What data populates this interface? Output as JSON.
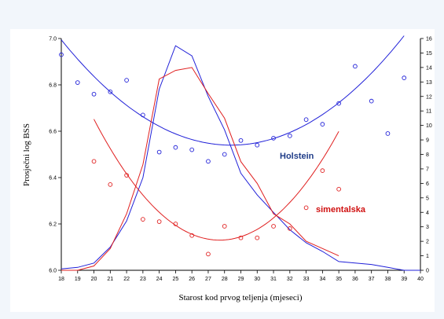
{
  "chart_data": {
    "type": "line",
    "xlabel": "Starost kod prvog teljenja (mjeseci)",
    "ylabel": "Prosječni log BSS",
    "x_ticks": [
      18,
      19,
      20,
      21,
      22,
      23,
      24,
      25,
      26,
      27,
      28,
      29,
      30,
      31,
      32,
      33,
      34,
      35,
      36,
      37,
      38,
      39,
      40
    ],
    "y_left_ticks": [
      "6.0",
      "6.2",
      "6.4",
      "6.6",
      "6.8",
      "7.0"
    ],
    "y_right_ticks": [
      0,
      1,
      2,
      3,
      4,
      5,
      6,
      7,
      8,
      9,
      10,
      11,
      12,
      13,
      14,
      15,
      16
    ],
    "xlim": [
      18,
      40
    ],
    "ylim_left": [
      6.0,
      7.0
    ],
    "ylim_right": [
      0,
      16
    ],
    "grid": false,
    "series": [
      {
        "name": "Holstein",
        "color": "#2020d8",
        "axis": "left",
        "points": [
          [
            18,
            6.93
          ],
          [
            19,
            6.81
          ],
          [
            20,
            6.76
          ],
          [
            21,
            6.77
          ],
          [
            22,
            6.82
          ],
          [
            23,
            6.67
          ],
          [
            24,
            6.51
          ],
          [
            25,
            6.53
          ],
          [
            26,
            6.52
          ],
          [
            27,
            6.47
          ],
          [
            28,
            6.5
          ],
          [
            29,
            6.56
          ],
          [
            30,
            6.54
          ],
          [
            31,
            6.57
          ],
          [
            32,
            6.58
          ],
          [
            33,
            6.65
          ],
          [
            34,
            6.63
          ],
          [
            35,
            6.72
          ],
          [
            36,
            6.88
          ],
          [
            37,
            6.73
          ],
          [
            38,
            6.59
          ],
          [
            39,
            6.83
          ]
        ],
        "trend_quadratic": {
          "x_vertex": 28.4,
          "y_vertex": 6.54,
          "a": 0.0042
        },
        "frequency_line": [
          [
            18,
            0.1
          ],
          [
            19,
            0.2
          ],
          [
            20,
            0.5
          ],
          [
            21,
            1.6
          ],
          [
            22,
            3.4
          ],
          [
            23,
            6.4
          ],
          [
            24,
            12.5
          ],
          [
            25,
            15.5
          ],
          [
            26,
            14.8
          ],
          [
            27,
            12.0
          ],
          [
            28,
            9.7
          ],
          [
            29,
            6.7
          ],
          [
            30,
            5.2
          ],
          [
            31,
            4.0
          ],
          [
            32,
            2.8
          ],
          [
            33,
            1.9
          ],
          [
            34,
            1.3
          ],
          [
            35,
            0.6
          ],
          [
            36,
            0.5
          ],
          [
            37,
            0.4
          ],
          [
            38,
            0.2
          ],
          [
            39,
            0.0
          ],
          [
            40,
            0.0
          ]
        ]
      },
      {
        "name": "simentalska",
        "color": "#e02020",
        "axis": "left",
        "points": [
          [
            20,
            6.47
          ],
          [
            21,
            6.37
          ],
          [
            22,
            6.41
          ],
          [
            23,
            6.22
          ],
          [
            24,
            6.21
          ],
          [
            25,
            6.2
          ],
          [
            26,
            6.15
          ],
          [
            27,
            6.07
          ],
          [
            28,
            6.19
          ],
          [
            29,
            6.14
          ],
          [
            30,
            6.14
          ],
          [
            31,
            6.19
          ],
          [
            32,
            6.18
          ],
          [
            33,
            6.27
          ],
          [
            34,
            6.43
          ],
          [
            35,
            6.35
          ]
        ],
        "trend_quadratic": {
          "x_vertex": 27.7,
          "y_vertex": 6.13,
          "a": 0.0088
        },
        "frequency_line": [
          [
            18,
            0.0
          ],
          [
            19,
            0.0
          ],
          [
            20,
            0.3
          ],
          [
            21,
            1.5
          ],
          [
            22,
            3.9
          ],
          [
            23,
            7.3
          ],
          [
            24,
            13.2
          ],
          [
            25,
            13.8
          ],
          [
            26,
            14.0
          ],
          [
            27,
            12.2
          ],
          [
            28,
            10.5
          ],
          [
            29,
            7.5
          ],
          [
            30,
            6.0
          ],
          [
            31,
            3.9
          ],
          [
            32,
            3.2
          ],
          [
            33,
            2.0
          ],
          [
            34,
            1.5
          ],
          [
            35,
            1.0
          ]
        ]
      }
    ]
  }
}
